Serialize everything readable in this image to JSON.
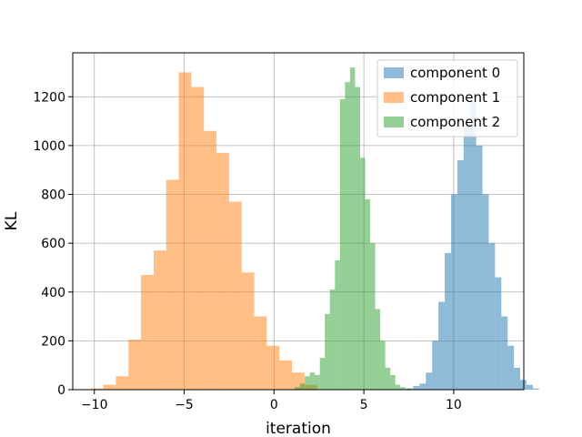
{
  "chart_data": {
    "type": "histogram",
    "xlabel": "iteration",
    "ylabel": "KL",
    "xlim": [
      -11.2,
      13.9
    ],
    "ylim": [
      0,
      1380
    ],
    "xticks": [
      -10,
      -5,
      0,
      5,
      10
    ],
    "yticks": [
      0,
      200,
      400,
      600,
      800,
      1000,
      1200
    ],
    "grid": true,
    "legend_position": "top-right",
    "series": [
      {
        "name": "component 0",
        "color": "#1f77b4",
        "bin_start": 7.4,
        "bin_width": 0.35,
        "counts": [
          5,
          15,
          25,
          70,
          200,
          360,
          560,
          800,
          940,
          1100,
          1180,
          1000,
          800,
          600,
          460,
          300,
          180,
          90,
          40,
          20,
          5
        ]
      },
      {
        "name": "component 1",
        "color": "#ff7f0e",
        "bin_start": -10.2,
        "bin_width": 0.7,
        "counts": [
          5,
          20,
          55,
          205,
          470,
          570,
          860,
          1300,
          1240,
          1060,
          970,
          770,
          480,
          300,
          180,
          120,
          70,
          20
        ]
      },
      {
        "name": "component 2",
        "color": "#2ca02c",
        "bin_start": 1.15,
        "bin_width": 0.28,
        "counts": [
          10,
          25,
          55,
          70,
          60,
          130,
          310,
          410,
          530,
          1190,
          1260,
          1320,
          1240,
          950,
          780,
          600,
          330,
          200,
          90,
          60,
          20,
          10,
          5
        ]
      }
    ]
  }
}
